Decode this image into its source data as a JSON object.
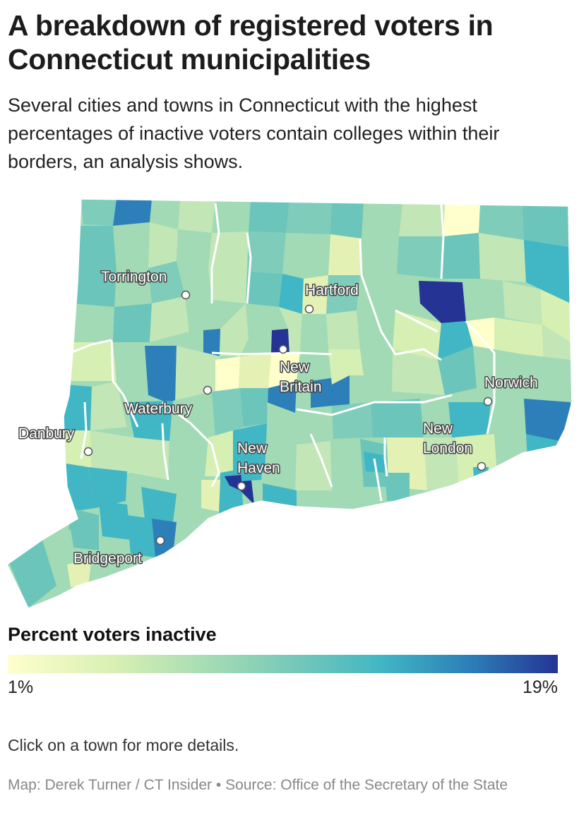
{
  "title": "A breakdown of registered voters in Connecticut municipalities",
  "subtitle": "Several cities and towns in Connecticut with the highest percentages of inactive voters contain colleges within their borders, an analysis shows.",
  "map": {
    "cities": [
      {
        "name": "Torrington"
      },
      {
        "name": "Hartford"
      },
      {
        "name": "New Britain"
      },
      {
        "name": "Norwich"
      },
      {
        "name": "Waterbury"
      },
      {
        "name": "Danbury"
      },
      {
        "name": "New Haven"
      },
      {
        "name": "New London"
      },
      {
        "name": "Bridgeport"
      }
    ],
    "color_scale": [
      "#ffffcc",
      "#d6efb3",
      "#a1dab4",
      "#6cc5ba",
      "#41b6c4",
      "#2c7fb8",
      "#253494"
    ]
  },
  "legend": {
    "title": "Percent voters inactive",
    "min_label": "1%",
    "max_label": "19%"
  },
  "note": "Click on a town for more details.",
  "credit": "Map: Derek Turner / CT Insider • Source: Office of the Secretary of the State"
}
